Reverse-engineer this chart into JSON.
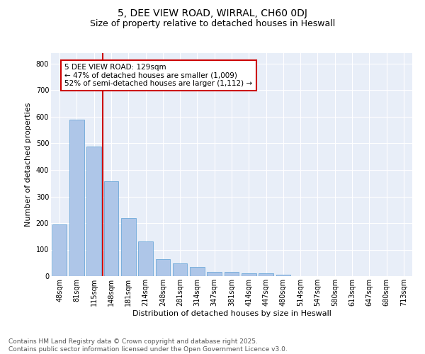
{
  "title": "5, DEE VIEW ROAD, WIRRAL, CH60 0DJ",
  "subtitle": "Size of property relative to detached houses in Heswall",
  "xlabel": "Distribution of detached houses by size in Heswall",
  "ylabel": "Number of detached properties",
  "categories": [
    "48sqm",
    "81sqm",
    "115sqm",
    "148sqm",
    "181sqm",
    "214sqm",
    "248sqm",
    "281sqm",
    "314sqm",
    "347sqm",
    "381sqm",
    "414sqm",
    "447sqm",
    "480sqm",
    "514sqm",
    "547sqm",
    "580sqm",
    "613sqm",
    "647sqm",
    "680sqm",
    "713sqm"
  ],
  "values": [
    196,
    588,
    488,
    357,
    220,
    132,
    63,
    48,
    35,
    17,
    17,
    11,
    11,
    5,
    0,
    0,
    0,
    0,
    0,
    0,
    0
  ],
  "bar_color": "#aec6e8",
  "bar_edge_color": "#5a9fd4",
  "vline_x": 2.5,
  "vline_color": "#cc0000",
  "annotation_text": "5 DEE VIEW ROAD: 129sqm\n← 47% of detached houses are smaller (1,009)\n52% of semi-detached houses are larger (1,112) →",
  "annotation_box_color": "#cc0000",
  "ylim": [
    0,
    840
  ],
  "yticks": [
    0,
    100,
    200,
    300,
    400,
    500,
    600,
    700,
    800
  ],
  "background_color": "#e8eef8",
  "grid_color": "#ffffff",
  "footer_text": "Contains HM Land Registry data © Crown copyright and database right 2025.\nContains public sector information licensed under the Open Government Licence v3.0.",
  "title_fontsize": 10,
  "subtitle_fontsize": 9,
  "axis_label_fontsize": 8,
  "tick_fontsize": 7,
  "annotation_fontsize": 7.5,
  "footer_fontsize": 6.5
}
